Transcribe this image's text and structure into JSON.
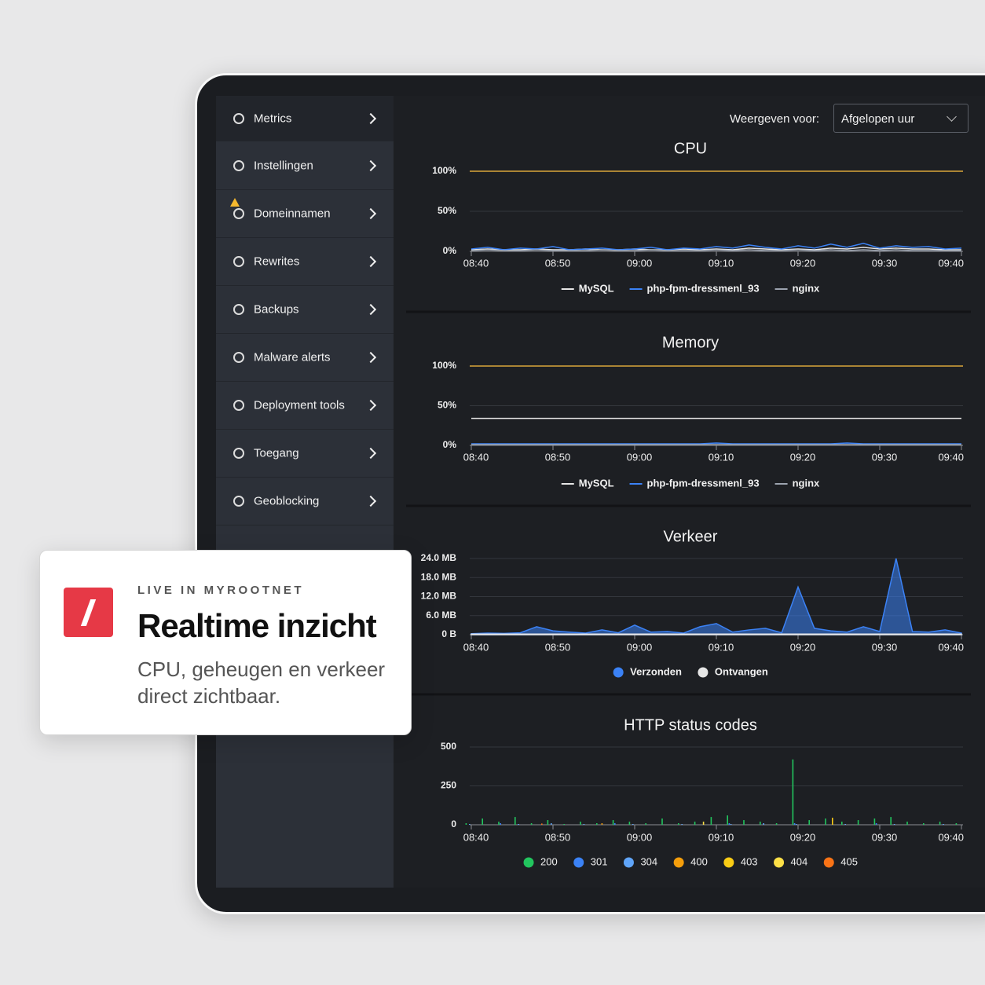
{
  "sidebar": {
    "items": [
      "Metrics",
      "Instellingen",
      "Domeinnamen",
      "Rewrites",
      "Backups",
      "Malware alerts",
      "Deployment tools",
      "Toegang",
      "Geoblocking"
    ]
  },
  "filter": {
    "label": "Weergeven voor:",
    "selected": "Afgelopen uur"
  },
  "card": {
    "eyebrow": "LIVE IN MYROOTNET",
    "title": "Realtime inzicht",
    "text": "CPU, geheugen en verkeer direct zichtbaar."
  },
  "chart_data": [
    {
      "type": "line",
      "title": "CPU",
      "max_line_color": "#d9a53a",
      "x": [
        "08:40",
        "08:42",
        "08:44",
        "08:46",
        "08:48",
        "08:50",
        "08:52",
        "08:54",
        "08:56",
        "08:58",
        "09:00",
        "09:02",
        "09:04",
        "09:06",
        "09:08",
        "09:10",
        "09:12",
        "09:14",
        "09:16",
        "09:18",
        "09:20",
        "09:22",
        "09:24",
        "09:26",
        "09:28",
        "09:30",
        "09:32",
        "09:34",
        "09:36",
        "09:38",
        "09:40"
      ],
      "xticks": [
        "08:40",
        "08:50",
        "09:00",
        "09:10",
        "09:20",
        "09:30",
        "09:40"
      ],
      "ylim": [
        0,
        100
      ],
      "yticks": [
        {
          "value": 0,
          "label": "0%"
        },
        {
          "value": 50,
          "label": "50%"
        },
        {
          "value": 100,
          "label": "100%"
        }
      ],
      "series": [
        {
          "name": "MySQL",
          "color": "#e6e6e6",
          "values": [
            2,
            3,
            2,
            2,
            3,
            2,
            2,
            3,
            2,
            2,
            3,
            2,
            2,
            3,
            2,
            3,
            2,
            4,
            3,
            2,
            3,
            2,
            4,
            3,
            5,
            3,
            4,
            3,
            3,
            2,
            2
          ]
        },
        {
          "name": "php-fpm-dressmenl_93",
          "color": "#3b82f6",
          "values": [
            3,
            5,
            2,
            4,
            3,
            6,
            2,
            3,
            4,
            2,
            3,
            5,
            2,
            4,
            3,
            6,
            4,
            8,
            5,
            3,
            7,
            4,
            9,
            5,
            10,
            4,
            7,
            5,
            6,
            3,
            4
          ]
        },
        {
          "name": "nginx",
          "color": "#9ca3af",
          "values": [
            1,
            2,
            1,
            1,
            2,
            1,
            1,
            1,
            2,
            1,
            1,
            2,
            1,
            1,
            1,
            2,
            1,
            2,
            1,
            1,
            2,
            1,
            2,
            1,
            2,
            1,
            2,
            1,
            1,
            1,
            1
          ]
        }
      ]
    },
    {
      "type": "line",
      "title": "Memory",
      "max_line_color": "#d9a53a",
      "x": [
        "08:40",
        "08:42",
        "08:44",
        "08:46",
        "08:48",
        "08:50",
        "08:52",
        "08:54",
        "08:56",
        "08:58",
        "09:00",
        "09:02",
        "09:04",
        "09:06",
        "09:08",
        "09:10",
        "09:12",
        "09:14",
        "09:16",
        "09:18",
        "09:20",
        "09:22",
        "09:24",
        "09:26",
        "09:28",
        "09:30",
        "09:32",
        "09:34",
        "09:36",
        "09:38",
        "09:40"
      ],
      "xticks": [
        "08:40",
        "08:50",
        "09:00",
        "09:10",
        "09:20",
        "09:30",
        "09:40"
      ],
      "ylim": [
        0,
        100
      ],
      "yticks": [
        {
          "value": 0,
          "label": "0%"
        },
        {
          "value": 50,
          "label": "50%"
        },
        {
          "value": 100,
          "label": "100%"
        }
      ],
      "series": [
        {
          "name": "MySQL",
          "color": "#e6e6e6",
          "values": [
            34,
            34,
            34,
            34,
            34,
            34,
            34,
            34,
            34,
            34,
            34,
            34,
            34,
            34,
            34,
            34,
            34,
            34,
            34,
            34,
            34,
            34,
            34,
            34,
            34,
            34,
            34,
            34,
            34,
            34,
            34
          ]
        },
        {
          "name": "php-fpm-dressmenl_93",
          "color": "#3b82f6",
          "values": [
            2,
            2,
            2,
            2,
            2,
            2,
            2,
            2,
            2,
            2,
            2,
            2,
            2,
            2,
            2,
            3,
            2,
            2,
            2,
            2,
            2,
            2,
            2,
            3,
            2,
            2,
            2,
            2,
            2,
            2,
            2
          ]
        },
        {
          "name": "nginx",
          "color": "#9ca3af",
          "values": [
            1,
            1,
            1,
            1,
            1,
            1,
            1,
            1,
            1,
            1,
            1,
            1,
            1,
            1,
            1,
            1,
            1,
            1,
            1,
            1,
            1,
            1,
            1,
            1,
            1,
            1,
            1,
            1,
            1,
            1,
            1
          ]
        }
      ]
    },
    {
      "type": "area",
      "title": "Verkeer",
      "x": [
        "08:40",
        "08:42",
        "08:44",
        "08:46",
        "08:48",
        "08:50",
        "08:52",
        "08:54",
        "08:56",
        "08:58",
        "09:00",
        "09:02",
        "09:04",
        "09:06",
        "09:08",
        "09:10",
        "09:12",
        "09:14",
        "09:16",
        "09:18",
        "09:20",
        "09:22",
        "09:24",
        "09:26",
        "09:28",
        "09:30",
        "09:32",
        "09:34",
        "09:36",
        "09:38",
        "09:40"
      ],
      "xticks": [
        "08:40",
        "08:50",
        "09:00",
        "09:10",
        "09:20",
        "09:30",
        "09:40"
      ],
      "ylim": [
        0,
        24
      ],
      "yticks": [
        {
          "value": 0,
          "label": "0 B"
        },
        {
          "value": 6,
          "label": "6.0 MB"
        },
        {
          "value": 12,
          "label": "12.0 MB"
        },
        {
          "value": 18,
          "label": "18.0 MB"
        },
        {
          "value": 24,
          "label": "24.0 MB"
        }
      ],
      "series": [
        {
          "name": "Verzonden",
          "color": "#3b82f6",
          "values": [
            0.3,
            0.5,
            0.4,
            0.6,
            2.5,
            1.2,
            0.8,
            0.5,
            1.5,
            0.6,
            3,
            0.8,
            1,
            0.5,
            2.5,
            3.5,
            0.8,
            1.5,
            2,
            0.6,
            15,
            2,
            1.2,
            0.8,
            2.5,
            1,
            24,
            1,
            0.8,
            1.5,
            0.5
          ]
        },
        {
          "name": "Ontvangen",
          "color": "#e6e6e6",
          "values": [
            0.2,
            0.2,
            0.2,
            0.2,
            0.2,
            0.2,
            0.2,
            0.2,
            0.2,
            0.2,
            0.2,
            0.2,
            0.2,
            0.2,
            0.2,
            0.2,
            0.2,
            0.2,
            0.2,
            0.2,
            0.2,
            0.2,
            0.2,
            0.2,
            0.2,
            0.2,
            0.2,
            0.2,
            0.2,
            0.2,
            0.2
          ]
        }
      ]
    },
    {
      "type": "bar",
      "title": "HTTP status codes",
      "x": [
        "08:40",
        "08:42",
        "08:44",
        "08:46",
        "08:48",
        "08:50",
        "08:52",
        "08:54",
        "08:56",
        "08:58",
        "09:00",
        "09:02",
        "09:04",
        "09:06",
        "09:08",
        "09:10",
        "09:12",
        "09:14",
        "09:16",
        "09:18",
        "09:20",
        "09:22",
        "09:24",
        "09:26",
        "09:28",
        "09:30",
        "09:32",
        "09:34",
        "09:36",
        "09:38",
        "09:40"
      ],
      "xticks": [
        "08:40",
        "08:50",
        "09:00",
        "09:10",
        "09:20",
        "09:30",
        "09:40"
      ],
      "ylim": [
        0,
        500
      ],
      "yticks": [
        0,
        250,
        500
      ],
      "series": [
        {
          "name": "200",
          "color": "#22c55e",
          "values": [
            10,
            40,
            20,
            50,
            10,
            30,
            5,
            20,
            10,
            30,
            20,
            10,
            40,
            10,
            20,
            50,
            60,
            30,
            20,
            10,
            420,
            30,
            40,
            20,
            30,
            40,
            50,
            20,
            10,
            20,
            10
          ]
        },
        {
          "name": "301",
          "color": "#3b82f6",
          "values": [
            0,
            0,
            10,
            0,
            0,
            0,
            0,
            0,
            0,
            10,
            0,
            0,
            0,
            0,
            0,
            0,
            10,
            0,
            0,
            0,
            10,
            0,
            0,
            0,
            0,
            10,
            0,
            0,
            0,
            0,
            0
          ]
        },
        {
          "name": "304",
          "color": "#60a5fa",
          "values": [
            5,
            0,
            0,
            5,
            0,
            10,
            0,
            5,
            0,
            0,
            5,
            0,
            0,
            5,
            0,
            0,
            5,
            0,
            10,
            0,
            5,
            0,
            0,
            5,
            0,
            0,
            5,
            0,
            0,
            5,
            0
          ]
        },
        {
          "name": "400",
          "color": "#f59e0b",
          "values": [
            0,
            0,
            0,
            0,
            0,
            0,
            0,
            0,
            10,
            0,
            0,
            0,
            0,
            0,
            0,
            0,
            0,
            0,
            0,
            0,
            0,
            0,
            0,
            0,
            0,
            0,
            0,
            0,
            0,
            0,
            0
          ]
        },
        {
          "name": "403",
          "color": "#facc15",
          "values": [
            0,
            0,
            0,
            0,
            0,
            0,
            0,
            0,
            0,
            0,
            0,
            0,
            0,
            0,
            0,
            0,
            0,
            0,
            0,
            0,
            0,
            0,
            45,
            0,
            0,
            0,
            0,
            0,
            0,
            0,
            0
          ]
        },
        {
          "name": "404",
          "color": "#fde047",
          "values": [
            0,
            0,
            0,
            0,
            0,
            0,
            0,
            0,
            0,
            0,
            0,
            0,
            0,
            0,
            20,
            0,
            0,
            0,
            0,
            0,
            0,
            0,
            0,
            0,
            0,
            0,
            0,
            0,
            0,
            0,
            0
          ]
        },
        {
          "name": "405",
          "color": "#f97316",
          "values": [
            0,
            0,
            0,
            0,
            8,
            0,
            0,
            0,
            0,
            0,
            0,
            0,
            0,
            0,
            0,
            0,
            0,
            0,
            0,
            0,
            0,
            0,
            0,
            0,
            0,
            0,
            0,
            0,
            0,
            0,
            0
          ]
        }
      ]
    }
  ]
}
